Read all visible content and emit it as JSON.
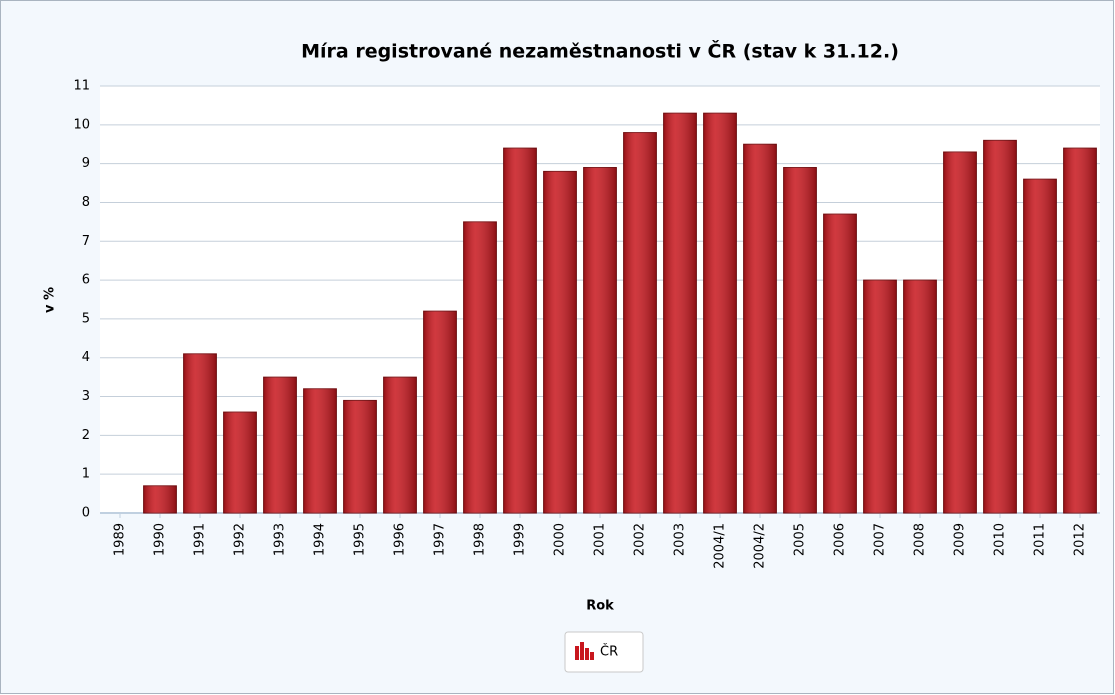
{
  "chart_data": {
    "type": "bar",
    "title": "Míra registrované nezaměstnanosti v ČR (stav k 31.12.)",
    "x_label": "Rok",
    "y_label": "v %",
    "categories": [
      "1989",
      "1990",
      "1991",
      "1992",
      "1993",
      "1994",
      "1995",
      "1996",
      "1997",
      "1998",
      "1999",
      "2000",
      "2001",
      "2002",
      "2003",
      "2004/1",
      "2004/2",
      "2005",
      "2006",
      "2007",
      "2008",
      "2009",
      "2010",
      "2011",
      "2012"
    ],
    "series": [
      {
        "name": "ČR",
        "color": "#c8161d",
        "values": [
          0,
          0.7,
          4.1,
          2.6,
          3.5,
          3.2,
          2.9,
          3.5,
          5.2,
          7.5,
          9.4,
          8.8,
          8.9,
          9.8,
          10.3,
          10.3,
          9.5,
          8.9,
          7.7,
          6.0,
          6.0,
          9.3,
          9.6,
          8.6,
          9.4
        ]
      }
    ],
    "ylim": [
      0,
      11
    ],
    "yticks": [
      0,
      1,
      2,
      3,
      4,
      5,
      6,
      7,
      8,
      9,
      10,
      11
    ],
    "grid": true
  }
}
